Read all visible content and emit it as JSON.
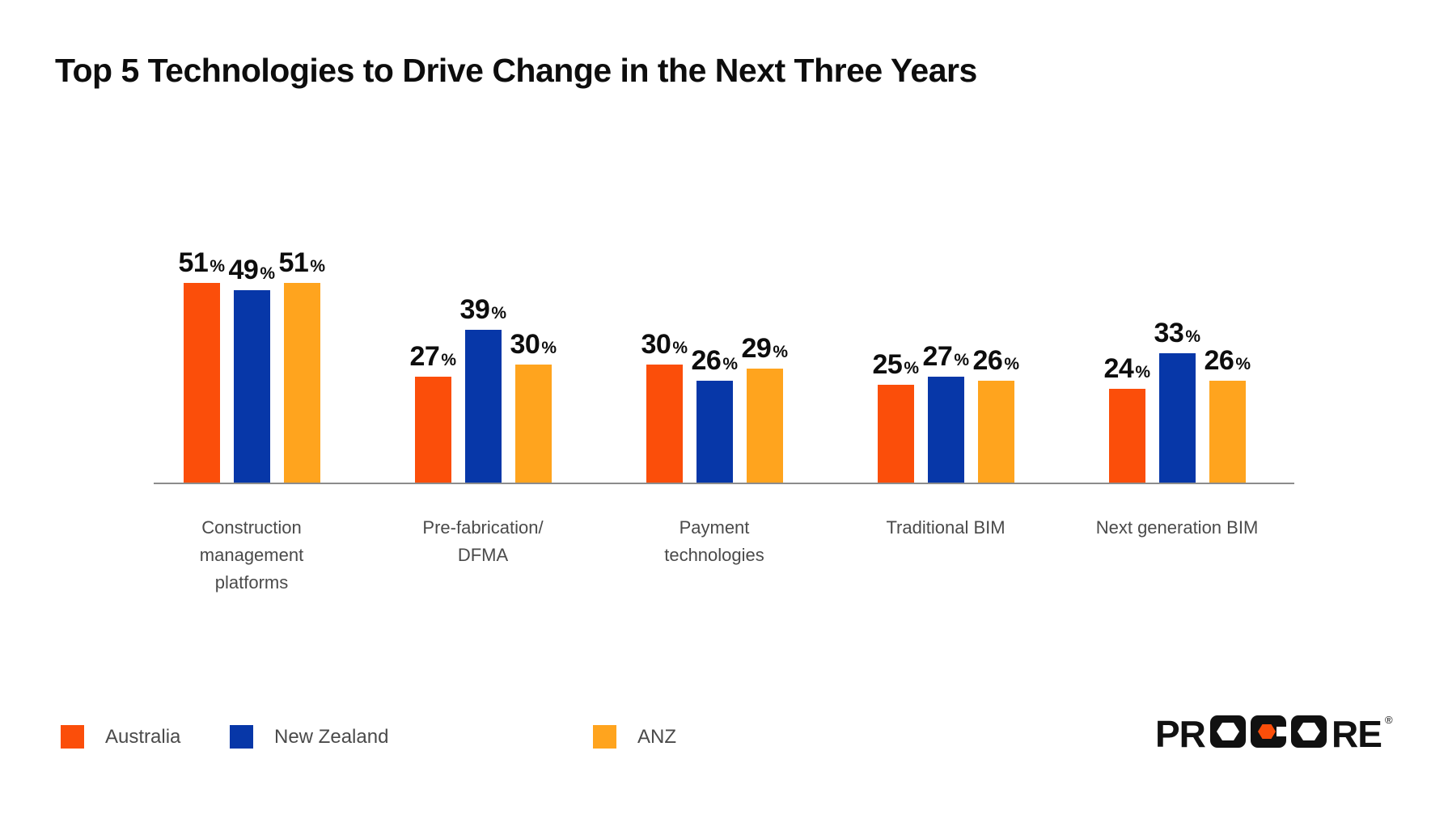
{
  "title": "Top 5 Technologies to Drive Change in the Next Three Years",
  "chart_data": {
    "type": "bar",
    "title": "Top 5 Technologies to Drive Change in the Next Three Years",
    "categories": [
      "Construction management platforms",
      "Pre-fabrication/ DFMA",
      "Payment technologies",
      "Traditional BIM",
      "Next generation BIM"
    ],
    "category_lines": [
      [
        "Construction",
        "management",
        "platforms"
      ],
      [
        "Pre-fabrication/",
        "DFMA"
      ],
      [
        "Payment",
        "technologies"
      ],
      [
        "Traditional BIM"
      ],
      [
        "Next generation BIM"
      ]
    ],
    "series": [
      {
        "name": "Australia",
        "color": "#FB4E0A",
        "values": [
          51,
          27,
          30,
          25,
          24
        ]
      },
      {
        "name": "New Zealand",
        "color": "#0737A8",
        "values": [
          49,
          39,
          26,
          27,
          33
        ]
      },
      {
        "name": "ANZ",
        "color": "#FFA41E",
        "values": [
          51,
          30,
          29,
          26,
          26
        ]
      }
    ],
    "value_suffix": "%",
    "ylim": [
      0,
      55
    ],
    "grid": false,
    "legend_position": "bottom-left",
    "axis_color": "#8C8C8C",
    "category_label_color": "#4A4A4A",
    "value_label_color": "#0D0D0D"
  },
  "legend": {
    "items": [
      {
        "label": "Australia",
        "color": "#FB4E0A"
      },
      {
        "label": "New Zealand",
        "color": "#0737A8"
      },
      {
        "label": "ANZ",
        "color": "#FFA41E"
      }
    ]
  },
  "logo": {
    "text": "PROCORE",
    "registered": "®",
    "color": "#111111",
    "hex_accent": "#FB4E0A"
  }
}
